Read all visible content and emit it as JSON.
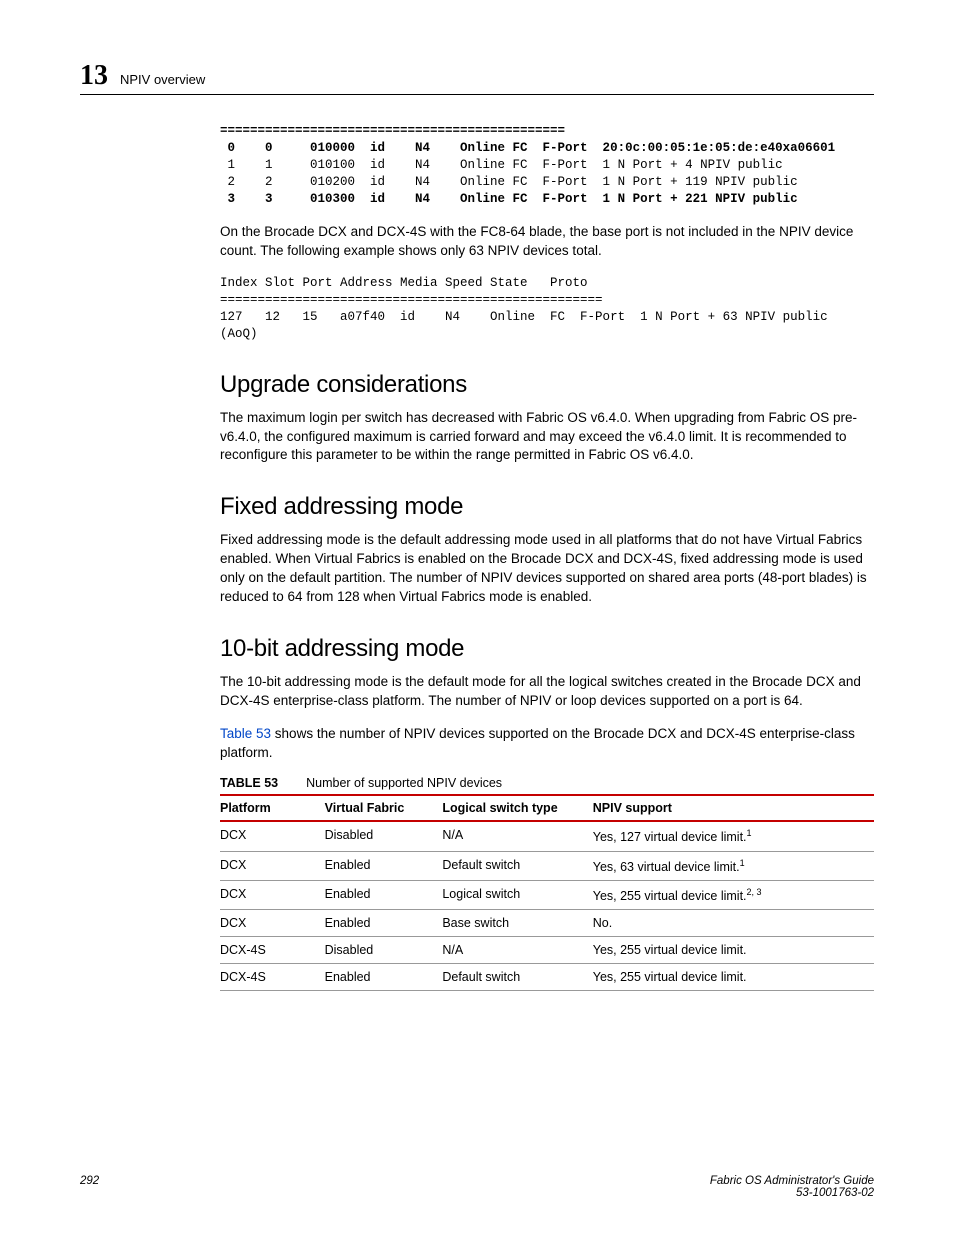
{
  "header": {
    "chapter_number": "13",
    "chapter_title": "NPIV overview"
  },
  "code_block_1": {
    "lines": [
      "==============================================",
      " 0    0     010000  id    N4    Online FC  F-Port  20:0c:00:05:1e:05:de:e40xa06601",
      " 1    1     010100  id    N4    Online FC  F-Port  1 N Port + 4 NPIV public",
      " 2    2     010200  id    N4    Online FC  F-Port  1 N Port + 119 NPIV public",
      " 3    3     010300  id    N4    Online FC  F-Port  1 N Port + 221 NPIV public"
    ],
    "bold_lines": [
      0,
      1,
      4
    ]
  },
  "para_1": "On the Brocade DCX and DCX-4S with the FC8-64 blade, the base port is not included in the NPIV device count. The following example shows only 63 NPIV devices total.",
  "code_block_2": {
    "lines": [
      "Index Slot Port Address Media Speed State   Proto",
      "===================================================",
      "127   12   15   a07f40  id    N4    Online  FC  F-Port  1 N Port + 63 NPIV public",
      "(AoQ)"
    ]
  },
  "sections": [
    {
      "heading": "Upgrade considerations",
      "paragraphs": [
        "The maximum login per switch has decreased with Fabric OS v6.4.0. When upgrading from Fabric OS pre-v6.4.0, the configured maximum is carried forward and may exceed the v6.4.0 limit. It is recommended to reconfigure this parameter to be within the range permitted in Fabric OS v6.4.0."
      ]
    },
    {
      "heading": "Fixed addressing mode",
      "paragraphs": [
        "Fixed addressing mode is the default addressing mode used in all platforms that do not have Virtual Fabrics enabled. When Virtual Fabrics is enabled on the Brocade DCX and DCX-4S, fixed addressing mode is used only on the default partition. The number of NPIV devices supported on shared area ports (48-port blades) is reduced to 64 from 128 when Virtual Fabrics mode is enabled."
      ]
    },
    {
      "heading": "10-bit addressing mode",
      "paragraphs": [
        "The 10-bit addressing mode is the default mode for all the logical switches created in the Brocade DCX and DCX-4S enterprise-class platform. The number of NPIV or loop devices supported on a port is 64."
      ],
      "link_para": {
        "link_text": "Table 53",
        "rest": " shows the number of NPIV devices supported on the Brocade DCX and DCX-4S enterprise-class platform."
      }
    }
  ],
  "table": {
    "label": "TABLE 53",
    "caption": "Number of supported NPIV devices",
    "columns": [
      "Platform",
      "Virtual Fabric",
      "Logical switch type",
      "NPIV support"
    ],
    "rows": [
      [
        "DCX",
        "Disabled",
        "N/A",
        "Yes, 127 virtual device limit.",
        "1"
      ],
      [
        "DCX",
        "Enabled",
        "Default switch",
        "Yes, 63 virtual device limit.",
        "1"
      ],
      [
        "DCX",
        "Enabled",
        "Logical switch",
        "Yes, 255 virtual device limit.",
        "2, 3"
      ],
      [
        "DCX",
        "Enabled",
        "Base switch",
        "No.",
        ""
      ],
      [
        "DCX-4S",
        "Disabled",
        "N/A",
        "Yes, 255 virtual device limit.",
        ""
      ],
      [
        "DCX-4S",
        "Enabled",
        "Default switch",
        "Yes, 255 virtual device limit.",
        ""
      ]
    ],
    "col_widths": [
      "16%",
      "18%",
      "23%",
      "43%"
    ]
  },
  "footer": {
    "page_number": "292",
    "doc_title": "Fabric OS Administrator's Guide",
    "doc_id": "53-1001763-02"
  },
  "colors": {
    "link": "#0046c8",
    "rule": "#c40000"
  }
}
